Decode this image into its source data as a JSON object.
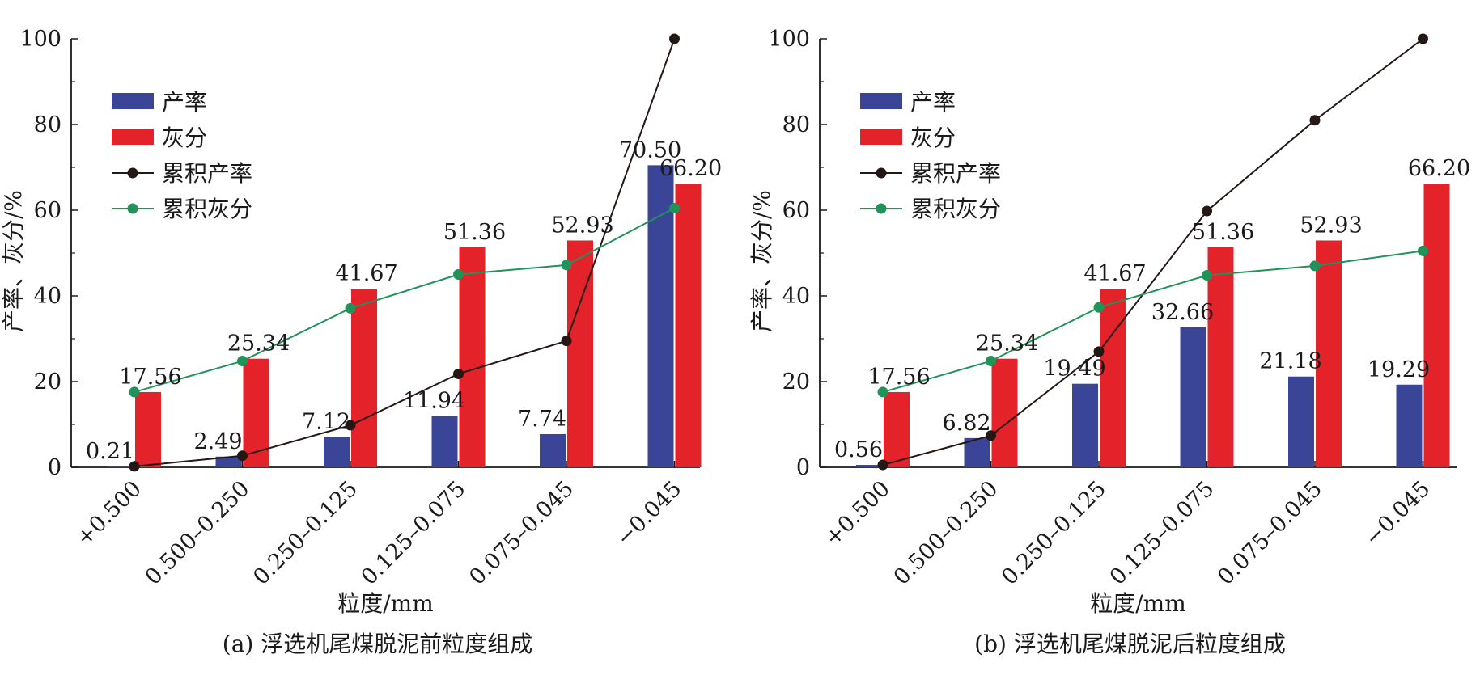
{
  "colors": {
    "yield_bar": "#3a4597",
    "ash_bar": "#e3222a",
    "cum_yield": "#231815",
    "cum_ash": "#21935a",
    "axis": "#1a1a1a"
  },
  "chart_data": [
    {
      "type": "bar",
      "caption": "(a) 浮选机尾煤脱泥前粒度组成",
      "xlabel": "粒度/mm",
      "ylabel": "产率、灰分/%",
      "ylim": [
        0,
        100
      ],
      "yticks": [
        "0",
        "20",
        "40",
        "60",
        "80",
        "100"
      ],
      "categories": [
        "+0.500",
        "0.500–0.250",
        "0.250–0.125",
        "0.125–0.075",
        "0.075–0.045",
        "−0.045"
      ],
      "legend_position": "top-left",
      "series": [
        {
          "name": "产率",
          "kind": "bar",
          "values": [
            0.21,
            2.49,
            7.12,
            11.94,
            7.74,
            70.5
          ],
          "labels": [
            "0.21",
            "2.49",
            "7.12",
            "11.94",
            "7.74",
            "70.50"
          ]
        },
        {
          "name": "灰分",
          "kind": "bar",
          "values": [
            17.56,
            25.34,
            41.67,
            51.36,
            52.93,
            66.2
          ],
          "labels": [
            "17.56",
            "25.34",
            "41.67",
            "51.36",
            "52.93",
            "66.20"
          ]
        },
        {
          "name": "累积产率",
          "kind": "line",
          "values": [
            0.21,
            2.7,
            9.8,
            21.8,
            29.5,
            100
          ]
        },
        {
          "name": "累积灰分",
          "kind": "line",
          "values": [
            17.56,
            24.8,
            37.1,
            45.0,
            47.2,
            60.5
          ]
        }
      ]
    },
    {
      "type": "bar",
      "caption": "(b) 浮选机尾煤脱泥后粒度组成",
      "xlabel": "粒度/mm",
      "ylabel": "产率、灰分/%",
      "ylim": [
        0,
        100
      ],
      "yticks": [
        "0",
        "20",
        "40",
        "60",
        "80",
        "100"
      ],
      "categories": [
        "+0.500",
        "0.500–0.250",
        "0.250–0.125",
        "0.125–0.075",
        "0.075–0.045",
        "−0.045"
      ],
      "legend_position": "top-left",
      "series": [
        {
          "name": "产率",
          "kind": "bar",
          "values": [
            0.56,
            6.82,
            19.49,
            32.66,
            21.18,
            19.29
          ],
          "labels": [
            "0.56",
            "6.82",
            "19.49",
            "32.66",
            "21.18",
            "19.29"
          ]
        },
        {
          "name": "灰分",
          "kind": "bar",
          "values": [
            17.56,
            25.34,
            41.67,
            51.36,
            52.93,
            66.2
          ],
          "labels": [
            "17.56",
            "25.34",
            "41.67",
            "51.36",
            "52.93",
            "66.20"
          ]
        },
        {
          "name": "累积产率",
          "kind": "line",
          "values": [
            0.56,
            7.4,
            27.0,
            59.8,
            81.0,
            100
          ]
        },
        {
          "name": "累积灰分",
          "kind": "line",
          "values": [
            17.56,
            24.8,
            37.3,
            44.8,
            47.0,
            50.5
          ]
        }
      ]
    }
  ]
}
